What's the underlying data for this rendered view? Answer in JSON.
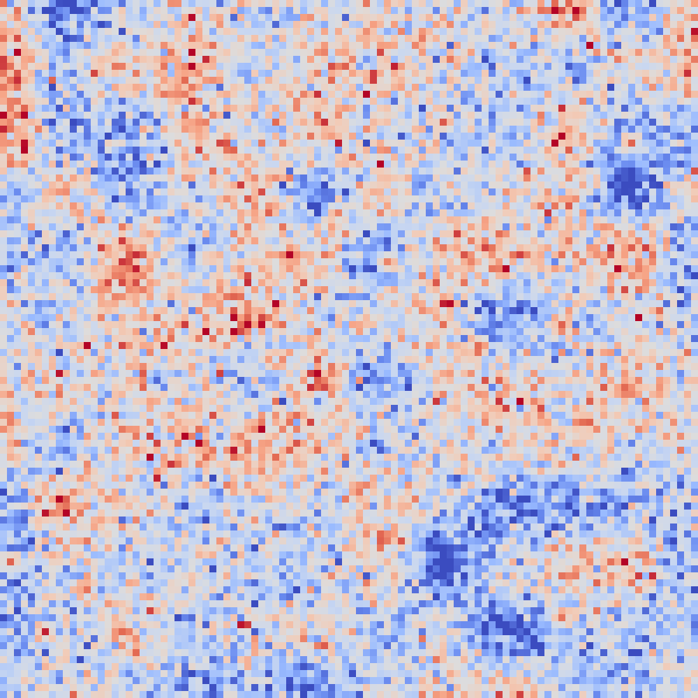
{
  "chart_data": {
    "type": "heatmap",
    "title": "",
    "xlabel": "",
    "ylabel": "",
    "colormap": "coolwarm",
    "colormap_stops": [
      "#3b4cc0",
      "#6788ee",
      "#9abbff",
      "#c9d7f0",
      "#dddcdc",
      "#f2cbb7",
      "#f6a385",
      "#e36a53",
      "#b40426"
    ],
    "value_range": [
      -3,
      3
    ],
    "rows": 100,
    "cols": 100,
    "field": {
      "seed": 20240611,
      "mean": -0.35,
      "smooth_scale": 9,
      "noise_amplitude": 0.95,
      "smooth_amplitude": 1.0
    },
    "hotspots": [
      {
        "row": 36,
        "col": 41,
        "value": 3.0
      },
      {
        "row": 90,
        "col": 6,
        "value": 2.8
      },
      {
        "row": 20,
        "col": 90,
        "value": 2.3
      },
      {
        "row": 49,
        "col": 68,
        "value": 2.2
      },
      {
        "row": 46,
        "col": 80,
        "value": 2.3
      },
      {
        "row": 88,
        "col": 80,
        "value": 2.1
      },
      {
        "row": 84,
        "col": 12,
        "value": 2.1
      },
      {
        "row": 60,
        "col": 83,
        "value": 2.2
      },
      {
        "row": 5,
        "col": 60,
        "value": 2.0
      },
      {
        "row": 13,
        "col": 26,
        "value": 2.0
      },
      {
        "row": 80,
        "col": 1,
        "value": 2.3
      },
      {
        "row": 70,
        "col": 51,
        "value": 2.0
      },
      {
        "row": 37,
        "col": 55,
        "value": 1.9
      },
      {
        "row": 30,
        "col": 48,
        "value": 1.9
      }
    ],
    "coldspots": [
      {
        "row": 54,
        "col": 22,
        "value": -2.6
      },
      {
        "row": 46,
        "col": 6,
        "value": -2.4
      },
      {
        "row": 26,
        "col": 60,
        "value": -2.3
      },
      {
        "row": 20,
        "col": 64,
        "value": -2.3
      },
      {
        "row": 63,
        "col": 70,
        "value": -2.3
      },
      {
        "row": 75,
        "col": 42,
        "value": -2.3
      },
      {
        "row": 57,
        "col": 45,
        "value": -2.2
      },
      {
        "row": 10,
        "col": 83,
        "value": -2.1
      },
      {
        "row": 96,
        "col": 18,
        "value": -2.2
      },
      {
        "row": 27,
        "col": 2,
        "value": -2.2
      },
      {
        "row": 47,
        "col": 85,
        "value": -2.1
      },
      {
        "row": 62,
        "col": 31,
        "value": -2.1
      },
      {
        "row": 32,
        "col": 55,
        "value": -2.0
      },
      {
        "row": 8,
        "col": 52,
        "value": -2.0
      },
      {
        "row": 97,
        "col": 58,
        "value": -2.0
      },
      {
        "row": 53,
        "col": 58,
        "value": -1.9
      }
    ],
    "grid": false,
    "legend": "none"
  }
}
